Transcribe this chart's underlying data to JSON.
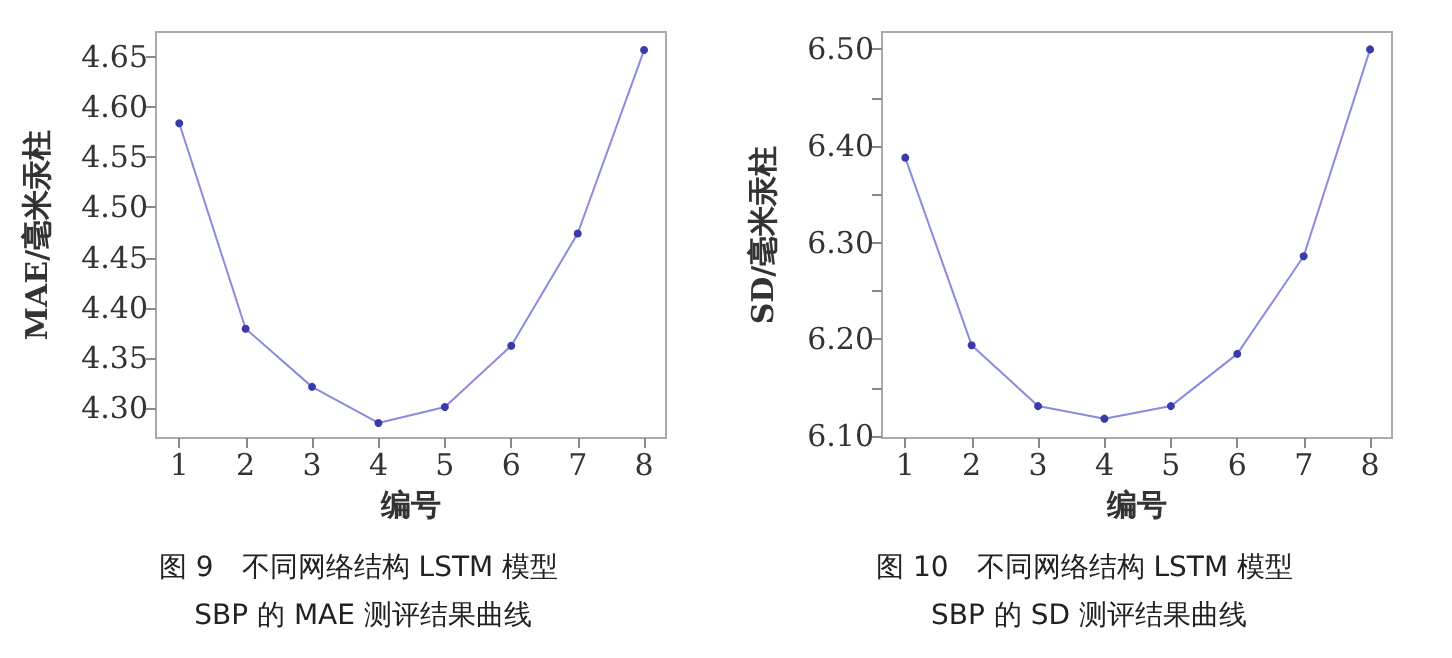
{
  "chart_data": [
    {
      "type": "line",
      "title": "图 9　不同网络结构 LSTM 模型 SBP 的 MAE 测评结果曲线",
      "xlabel": "编号",
      "ylabel": "MAE/毫米汞柱",
      "x": [
        1,
        2,
        3,
        4,
        5,
        6,
        7,
        8
      ],
      "series": [
        {
          "color": "#8a8ae0",
          "values": [
            4.584,
            4.379,
            4.321,
            4.285,
            4.301,
            4.362,
            4.474,
            4.657
          ]
        }
      ],
      "xlim": [
        0.65,
        8.33
      ],
      "xticks": [
        1,
        2,
        3,
        4,
        5,
        6,
        7,
        8
      ],
      "ylim": [
        4.27,
        4.675
      ],
      "yticks": [
        {
          "value": 4.3,
          "label": "4.30"
        },
        {
          "value": 4.35,
          "label": "4.35"
        },
        {
          "value": 4.4,
          "label": "4.40"
        },
        {
          "value": 4.45,
          "label": "4.45"
        },
        {
          "value": 4.5,
          "label": "4.50"
        },
        {
          "value": 4.55,
          "label": "4.55"
        },
        {
          "value": 4.6,
          "label": "4.60"
        },
        {
          "value": 4.65,
          "label": "4.65"
        }
      ],
      "marker": "circle",
      "line_style": "solid"
    },
    {
      "type": "line",
      "title": "图 10　不同网络结构 LSTM 模型 SBP 的 SD 测评结果曲线",
      "xlabel": "编号",
      "ylabel": "SD/毫米汞柱",
      "x": [
        1,
        2,
        3,
        4,
        5,
        6,
        7,
        8
      ],
      "series": [
        {
          "color": "#8a8ae0",
          "values": [
            6.388,
            6.194,
            6.131,
            6.118,
            6.131,
            6.185,
            6.286,
            6.5
          ]
        }
      ],
      "xlim": [
        0.65,
        8.33
      ],
      "xticks": [
        1,
        2,
        3,
        4,
        5,
        6,
        7,
        8
      ],
      "ylim": [
        6.098,
        6.518
      ],
      "yticks": [
        {
          "value": 6.1,
          "label": "6.10"
        },
        {
          "value": 6.15,
          "label": null
        },
        {
          "value": 6.2,
          "label": "6.20"
        },
        {
          "value": 6.25,
          "label": null
        },
        {
          "value": 6.3,
          "label": "6.30"
        },
        {
          "value": 6.35,
          "label": null
        },
        {
          "value": 6.4,
          "label": "6.40"
        },
        {
          "value": 6.45,
          "label": null
        },
        {
          "value": 6.5,
          "label": "6.50"
        }
      ],
      "marker": "circle",
      "line_style": "solid"
    }
  ]
}
